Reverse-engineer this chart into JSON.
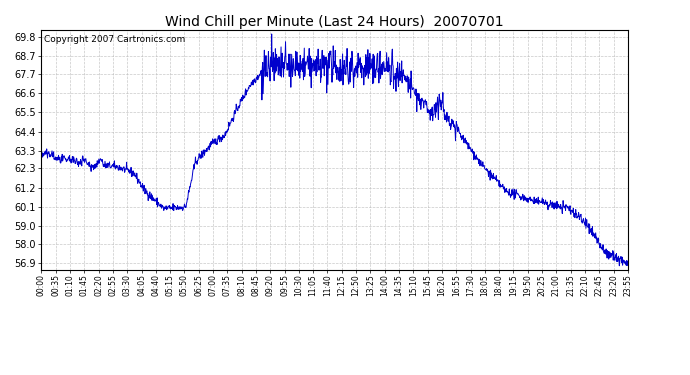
{
  "title": "Wind Chill per Minute (Last 24 Hours)  20070701",
  "copyright": "Copyright 2007 Cartronics.com",
  "line_color": "#0000cc",
  "background_color": "#ffffff",
  "plot_background": "#ffffff",
  "grid_color": "#bbbbbb",
  "ylim": [
    56.5,
    70.2
  ],
  "yticks": [
    56.9,
    58.0,
    59.0,
    60.1,
    61.2,
    62.3,
    63.3,
    64.4,
    65.5,
    66.6,
    67.7,
    68.7,
    69.8
  ],
  "xtick_labels": [
    "00:00",
    "00:35",
    "01:10",
    "01:45",
    "02:20",
    "02:55",
    "03:30",
    "04:05",
    "04:40",
    "05:15",
    "05:50",
    "06:25",
    "07:00",
    "07:35",
    "08:10",
    "08:45",
    "09:20",
    "09:55",
    "10:30",
    "11:05",
    "11:40",
    "12:15",
    "12:50",
    "13:25",
    "14:00",
    "14:35",
    "15:10",
    "15:45",
    "16:20",
    "16:55",
    "17:30",
    "18:05",
    "18:40",
    "19:15",
    "19:50",
    "20:25",
    "21:00",
    "21:35",
    "22:10",
    "22:45",
    "23:20",
    "23:55"
  ]
}
